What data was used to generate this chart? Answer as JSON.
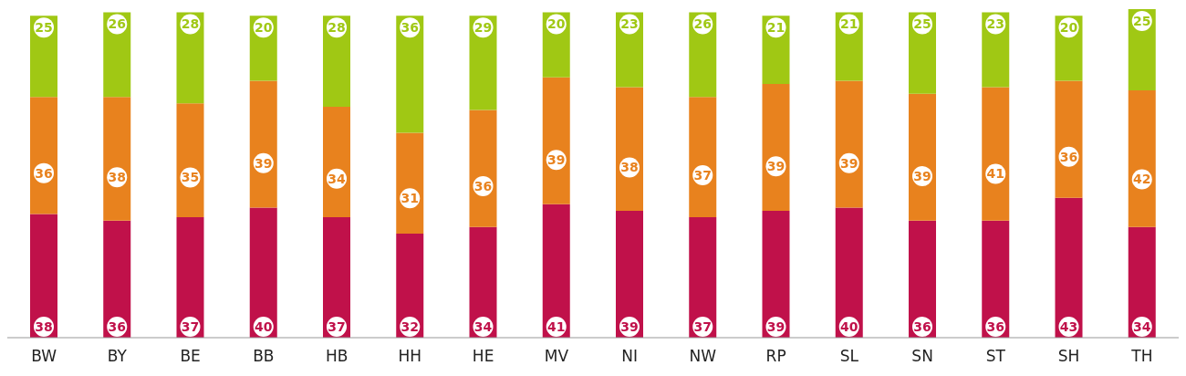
{
  "chart_data": {
    "type": "bar",
    "stacked": true,
    "data_labels": true,
    "legend": false,
    "grid": false,
    "categories": [
      "BW",
      "BY",
      "BE",
      "BB",
      "HB",
      "HH",
      "HE",
      "MV",
      "NI",
      "NW",
      "RP",
      "SL",
      "SN",
      "ST",
      "SH",
      "TH"
    ],
    "series": [
      {
        "color": "#c0114a",
        "values": [
          38,
          36,
          37,
          40,
          37,
          32,
          34,
          41,
          39,
          37,
          39,
          40,
          36,
          36,
          43,
          34
        ]
      },
      {
        "color": "#e8821e",
        "values": [
          36,
          38,
          35,
          39,
          34,
          31,
          36,
          39,
          38,
          37,
          39,
          39,
          39,
          41,
          36,
          42
        ]
      },
      {
        "color": "#a0c814",
        "values": [
          25,
          26,
          28,
          20,
          28,
          36,
          29,
          20,
          23,
          26,
          21,
          21,
          25,
          23,
          20,
          25
        ]
      }
    ]
  }
}
